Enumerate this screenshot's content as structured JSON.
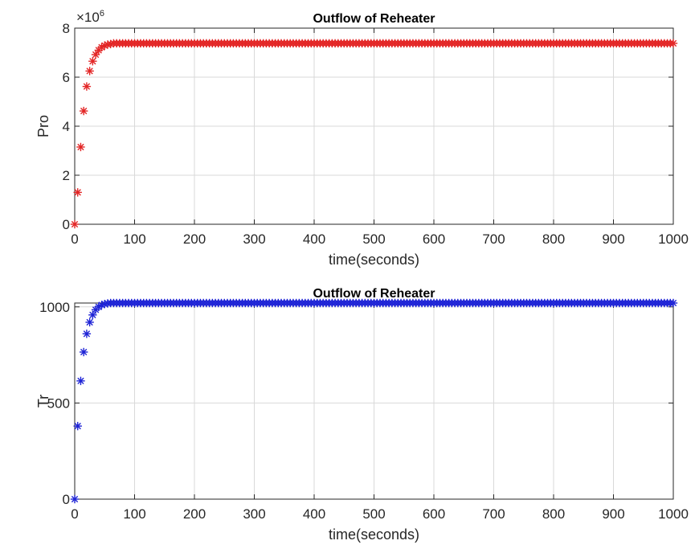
{
  "chart_data": [
    {
      "type": "scatter",
      "title": "Outflow of Reheater",
      "xlabel": "time(seconds)",
      "ylabel": "Pro",
      "exponent_label": "×10^6",
      "xlim": [
        0,
        1000
      ],
      "ylim": [
        0,
        8000000
      ],
      "x_ticks": [
        0,
        100,
        200,
        300,
        400,
        500,
        600,
        700,
        800,
        900,
        1000
      ],
      "x_tick_labels": [
        "0",
        "100",
        "200",
        "300",
        "400",
        "500",
        "600",
        "700",
        "800",
        "900",
        "1000"
      ],
      "y_ticks": [
        0,
        2000000,
        4000000,
        6000000,
        8000000
      ],
      "y_tick_labels": [
        "0",
        "2",
        "4",
        "6",
        "8"
      ],
      "grid": true,
      "marker": "*",
      "color": "#e32626",
      "series": [
        {
          "x_start": 0,
          "x_step": 5,
          "x_end": 1000,
          "initial_values": [
            0,
            1300000,
            3150000,
            4620000,
            5620000,
            6250000,
            6650000,
            6920000,
            7100000,
            7220000,
            7290000,
            7330000,
            7350000
          ],
          "steady_value": 7380000
        }
      ]
    },
    {
      "type": "scatter",
      "title": "Outflow of Reheater",
      "xlabel": "time(seconds)",
      "ylabel": "Tr",
      "xlim": [
        0,
        1000
      ],
      "ylim": [
        0,
        1020
      ],
      "x_ticks": [
        0,
        100,
        200,
        300,
        400,
        500,
        600,
        700,
        800,
        900,
        1000
      ],
      "x_tick_labels": [
        "0",
        "100",
        "200",
        "300",
        "400",
        "500",
        "600",
        "700",
        "800",
        "900",
        "1000"
      ],
      "y_ticks": [
        0,
        500,
        1000
      ],
      "y_tick_labels": [
        "0",
        "500",
        "1000"
      ],
      "grid": true,
      "marker": "*",
      "color": "#1f24d6",
      "series": [
        {
          "x_start": 0,
          "x_step": 5,
          "x_end": 1000,
          "initial_values": [
            0,
            380,
            615,
            765,
            860,
            920,
            958,
            985,
            1000,
            1010,
            1015,
            1018
          ],
          "steady_value": 1020
        }
      ]
    }
  ]
}
